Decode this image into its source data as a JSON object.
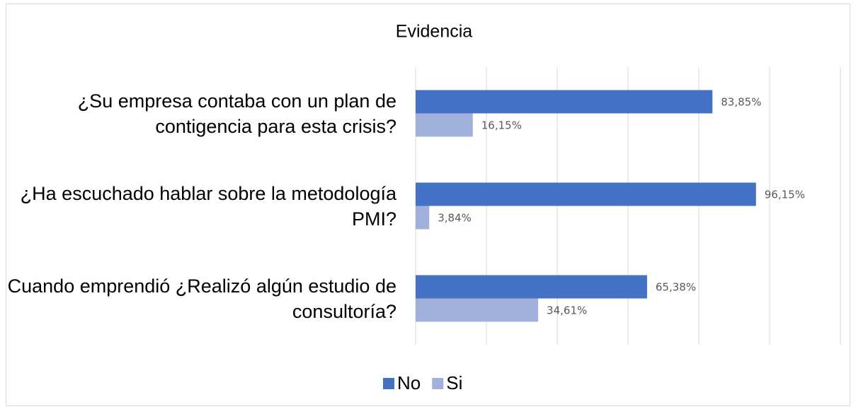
{
  "chart_data": {
    "type": "barh",
    "title": "Evidencia",
    "categories": [
      "¿Su empresa contaba con un plan de contigencia para esta crisis?",
      "¿Ha escuchado hablar sobre la metodología PMI?",
      "Cuando emprendió ¿Realizó algún estudio de consultoría?"
    ],
    "series": [
      {
        "name": "No",
        "color": "#4472c4",
        "values": [
          83.85,
          96.15,
          65.38
        ],
        "value_labels": [
          "83,85%",
          "96,15%",
          "65,38%"
        ]
      },
      {
        "name": "Si",
        "color": "#a2b0dc",
        "values": [
          16.15,
          3.84,
          34.61
        ],
        "value_labels": [
          "16,15%",
          "3,84%",
          "34,61%"
        ]
      }
    ],
    "xlim": [
      0,
      120
    ],
    "xticks": [
      0,
      20,
      40,
      60,
      80,
      100,
      120
    ],
    "grid": true,
    "legend": "bottom"
  }
}
